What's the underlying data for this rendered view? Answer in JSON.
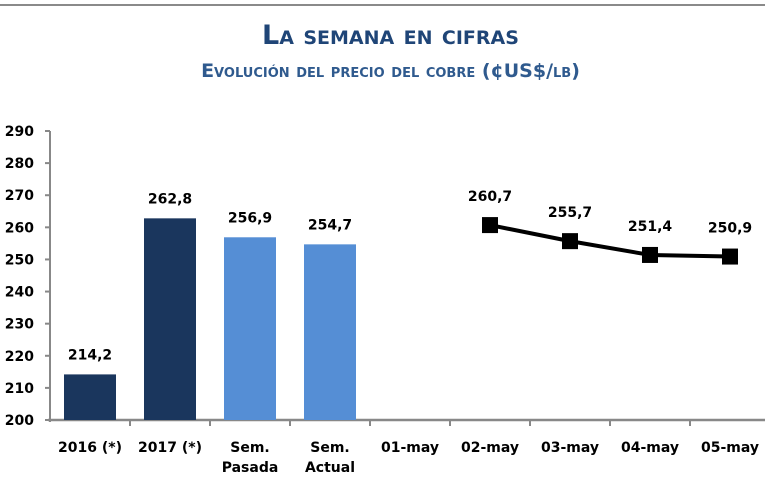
{
  "header": {
    "title": "La semana en cifras",
    "subtitle": "Evolución del precio del cobre  (¢US$/lb)"
  },
  "chart_data": {
    "type": "bar+line",
    "title": "La semana en cifras",
    "subtitle": "Evolución del precio del cobre  (¢US$/lb)",
    "categories": [
      "2016 (*)",
      "2017 (*)",
      "Sem. Pasada",
      "Sem. Actual",
      "01-may",
      "02-may",
      "03-may",
      "04-may",
      "05-may"
    ],
    "ylim": [
      200,
      290
    ],
    "yticks": [
      200,
      210,
      220,
      230,
      240,
      250,
      260,
      270,
      280,
      290
    ],
    "grid": false,
    "bars": [
      {
        "category": "2016 (*)",
        "value": 214.2,
        "label": "214,2",
        "color": "#1a365d"
      },
      {
        "category": "2017 (*)",
        "value": 262.8,
        "label": "262,8",
        "color": "#1a365d"
      },
      {
        "category": "Sem. Pasada",
        "value": 256.9,
        "label": "256,9",
        "color": "#558ed5"
      },
      {
        "category": "Sem. Actual",
        "value": 254.7,
        "label": "254,7",
        "color": "#558ed5"
      }
    ],
    "line": {
      "color": "#000000",
      "marker": "square",
      "points": [
        {
          "category": "02-may",
          "value": 260.7,
          "label": "260,7"
        },
        {
          "category": "03-may",
          "value": 255.7,
          "label": "255,7"
        },
        {
          "category": "04-may",
          "value": 251.4,
          "label": "251,4"
        },
        {
          "category": "05-may",
          "value": 250.9,
          "label": "250,9"
        }
      ]
    }
  }
}
